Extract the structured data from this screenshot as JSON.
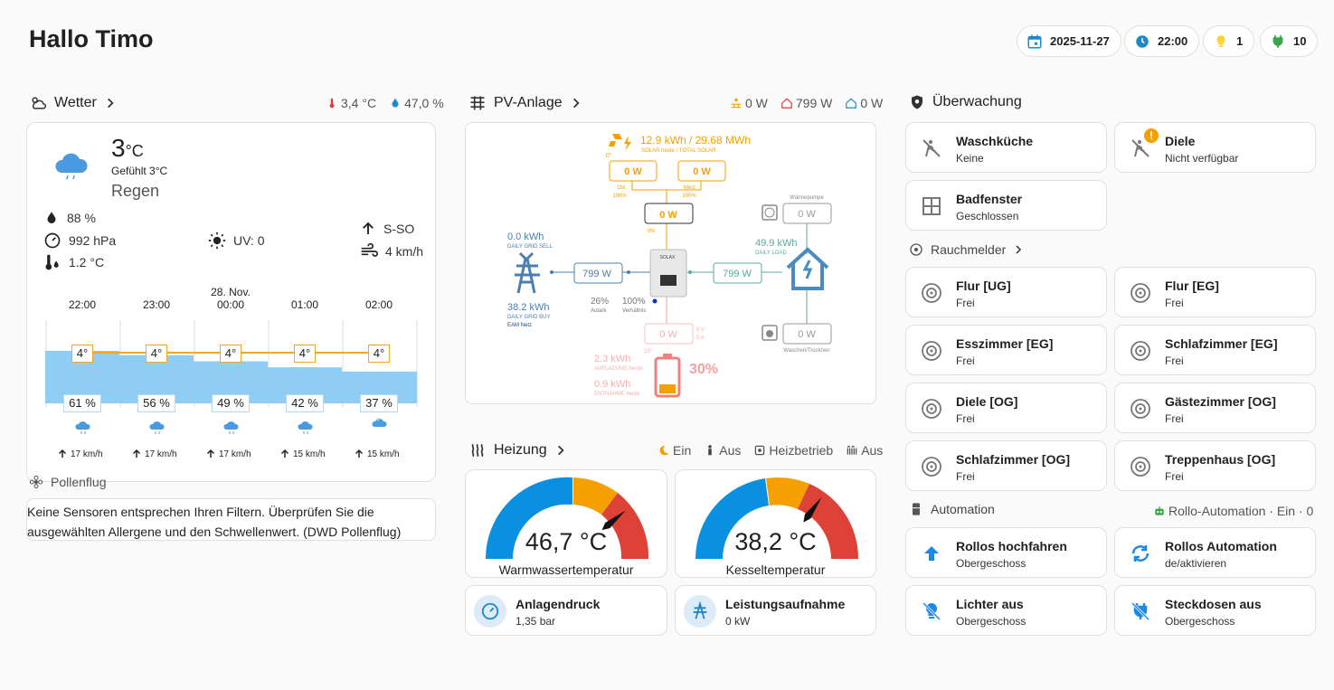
{
  "header": {
    "title": "Hallo Timo",
    "chips": [
      {
        "icon": "calendar-icon",
        "label": "2025-11-27"
      },
      {
        "icon": "clock-icon",
        "label": "22:00"
      },
      {
        "icon": "lightbulb-icon",
        "label": "1"
      },
      {
        "icon": "power-plug-icon",
        "label": "10"
      }
    ]
  },
  "weather": {
    "title": "Wetter",
    "temp_out": "3,4 °C",
    "humidity_out": "47,0 %",
    "current_temp": "3",
    "current_unit": "°C",
    "feels_like": "Gefühlt 3°C",
    "condition": "Regen",
    "humidity": "88 %",
    "pressure": "992 hPa",
    "dew_point": "1.2 °C",
    "uv": "UV: 0",
    "wind_dir": "S-SO",
    "wind_speed": "4 km/h",
    "date_label": "28. Nov.",
    "forecast": [
      {
        "time": "22:00",
        "temp": "4°",
        "precip": "61 %",
        "wind": "17 km/h"
      },
      {
        "time": "23:00",
        "temp": "4°",
        "precip": "56 %",
        "wind": "17 km/h"
      },
      {
        "time": "00:00",
        "temp": "4°",
        "precip": "49 %",
        "wind": "17 km/h"
      },
      {
        "time": "01:00",
        "temp": "4°",
        "precip": "42 %",
        "wind": "15 km/h"
      },
      {
        "time": "02:00",
        "temp": "4°",
        "precip": "37 %",
        "wind": "15 km/h"
      }
    ],
    "precip_values": [
      61,
      56,
      49,
      42,
      37
    ]
  },
  "pollen": {
    "title": "Pollenflug",
    "message": "Keine Sensoren entsprechen Ihren Filtern. Überprüfen Sie die ausgewählten Allergene und den Schwellenwert. (DWD Pollenflug)"
  },
  "pv": {
    "title": "PV-Anlage",
    "stat_solar": "0 W",
    "stat_home": "799 W",
    "stat_grid": "0 W",
    "solar_today": "12.9 kWh / 29.68 MWh",
    "solar_caption": "SOLAR heute / TOTAL SOLAR",
    "solar_temp": "0°",
    "ost_w": "0 W",
    "ost_label": "Ost",
    "ost_pct": "100%",
    "west_w": "0 W",
    "west_label": "West",
    "west_pct": "100%",
    "pv_total": "0 W",
    "pv_pct": "0%",
    "grid_sell": "0.0 kWh",
    "grid_sell_caption": "DAILY GRID SELL",
    "grid_buy": "38.2 kWh",
    "grid_buy_caption": "DAILY GRID BUY",
    "grid_name": "EAM Netz",
    "grid_w": "799 W",
    "autark": "26%",
    "autark_label": "Autark",
    "ratio": "100%",
    "ratio_label": "Verhältnis",
    "load_w": "799 W",
    "load_kwh": "49.9 kWh",
    "load_caption": "DAILY LOAD",
    "heatpump_label": "Wärmepumpe",
    "heatpump_w": "0 W",
    "washer_label": "Waschen/Trocknen",
    "washer_w": "0 W",
    "battery_w": "0 W",
    "battery_v": "0 V",
    "battery_a": "0 A",
    "battery_temp": "15°",
    "battery_charge": "2.3 kWh",
    "battery_charge_caption": "AUFLADUNG heute",
    "battery_discharge": "0.9 kWh",
    "battery_discharge_caption": "ENTNAHME heute",
    "battery_soc": "30%",
    "inverter_label": "SOLAX"
  },
  "heating": {
    "title": "Heizung",
    "status": [
      {
        "icon": "moon-sun-icon",
        "label": "Ein"
      },
      {
        "icon": "person-icon",
        "label": "Aus"
      },
      {
        "icon": "boiler-icon",
        "label": "Heizbetrieb"
      },
      {
        "icon": "radiator-icon",
        "label": "Aus"
      }
    ],
    "gauges": [
      {
        "value": "46,7 °C",
        "label": "Warmwassertemperatur",
        "fraction": 0.78
      },
      {
        "value": "38,2 °C",
        "label": "Kesseltemperatur",
        "fraction": 0.7
      }
    ],
    "tiles": [
      {
        "title": "Anlagendruck",
        "value": "1,35 bar"
      },
      {
        "title": "Leistungsaufnahme",
        "value": "0 kW"
      }
    ]
  },
  "monitoring": {
    "title": "Überwachung",
    "tiles": [
      {
        "title": "Waschküche",
        "value": "Keine"
      },
      {
        "title": "Diele",
        "value": "Nicht verfügbar"
      },
      {
        "title": "Badfenster",
        "value": "Geschlossen"
      }
    ]
  },
  "smoke": {
    "title": "Rauchmelder",
    "tiles": [
      {
        "title": "Flur [UG]",
        "value": "Frei"
      },
      {
        "title": "Flur [EG]",
        "value": "Frei"
      },
      {
        "title": "Esszimmer [EG]",
        "value": "Frei"
      },
      {
        "title": "Schlafzimmer [EG]",
        "value": "Frei"
      },
      {
        "title": "Diele [OG]",
        "value": "Frei"
      },
      {
        "title": "Gästezimmer [OG]",
        "value": "Frei"
      },
      {
        "title": "Schlafzimmer [OG]",
        "value": "Frei"
      },
      {
        "title": "Treppenhaus [OG]",
        "value": "Frei"
      }
    ]
  },
  "automation": {
    "title": "Automation",
    "status": "Rollo-Automation · Ein · 0",
    "tiles": [
      {
        "title": "Rollos hochfahren",
        "value": "Obergeschoss"
      },
      {
        "title": "Rollos Automation",
        "value": "de/aktivieren"
      },
      {
        "title": "Lichter aus",
        "value": "Obergeschoss"
      },
      {
        "title": "Steckdosen aus",
        "value": "Obergeschoss"
      }
    ]
  },
  "colors": {
    "solar": "#f5a000",
    "grid": "#4a7fb0",
    "home": "#4a8bc2",
    "battery": "#f08080",
    "load": "#5aaaa0"
  }
}
